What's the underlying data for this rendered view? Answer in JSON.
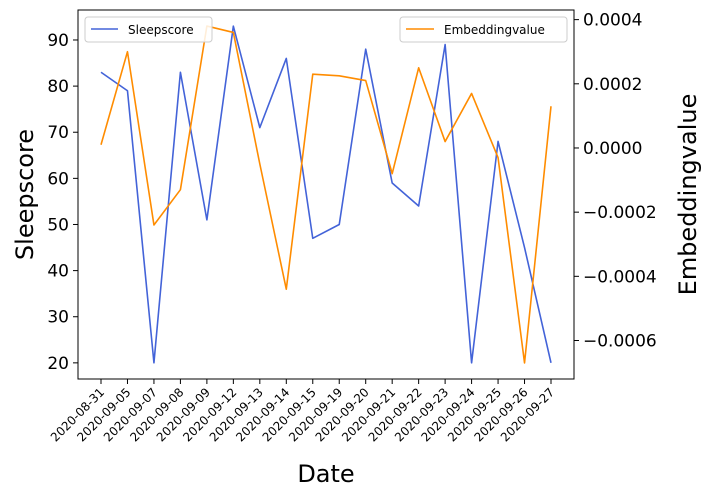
{
  "chart_data": {
    "type": "line",
    "title": "",
    "xlabel": "Date",
    "ylabel_left": "Sleepscore",
    "ylabel_right": "Embeddingvalue",
    "x": [
      "2020-08-31",
      "2020-09-05",
      "2020-09-07",
      "2020-09-08",
      "2020-09-09",
      "2020-09-12",
      "2020-09-13",
      "2020-09-14",
      "2020-09-15",
      "2020-09-19",
      "2020-09-20",
      "2020-09-21",
      "2020-09-22",
      "2020-09-23",
      "2020-09-24",
      "2020-09-25",
      "2020-09-26",
      "2020-09-27"
    ],
    "left_axis": {
      "ylim": [
        16.5,
        96.5
      ],
      "ticks": [
        20,
        30,
        40,
        50,
        60,
        70,
        80,
        90
      ],
      "tick_labels": [
        "20",
        "30",
        "40",
        "50",
        "60",
        "70",
        "80",
        "90"
      ]
    },
    "right_axis": {
      "ylim": [
        -0.00072,
        0.00043
      ],
      "ticks": [
        -0.0006,
        -0.0004,
        -0.0002,
        0.0,
        0.0002,
        0.0004
      ],
      "tick_labels": [
        "−0.0006",
        "−0.0004",
        "−0.0002",
        "0.0000",
        "0.0002",
        "0.0004"
      ]
    },
    "series": [
      {
        "name": "Sleepscore",
        "axis": "left",
        "color": "#4363d8",
        "legend_position": "upper-left",
        "values": [
          83,
          79,
          20,
          83,
          51,
          93,
          71,
          86,
          47,
          50,
          88,
          59,
          54,
          89,
          20,
          68,
          45,
          20
        ]
      },
      {
        "name": "Embeddingvalue",
        "axis": "right",
        "color": "#ff8c00",
        "legend_position": "upper-right",
        "values": [
          1e-05,
          0.0003,
          -0.00024,
          -0.00013,
          0.00038,
          0.00036,
          -5e-05,
          -0.00044,
          0.00023,
          0.000225,
          0.00021,
          -8e-05,
          0.00025,
          2e-05,
          0.00017,
          -3e-05,
          -0.00067,
          0.00013
        ]
      }
    ],
    "grid": false
  }
}
